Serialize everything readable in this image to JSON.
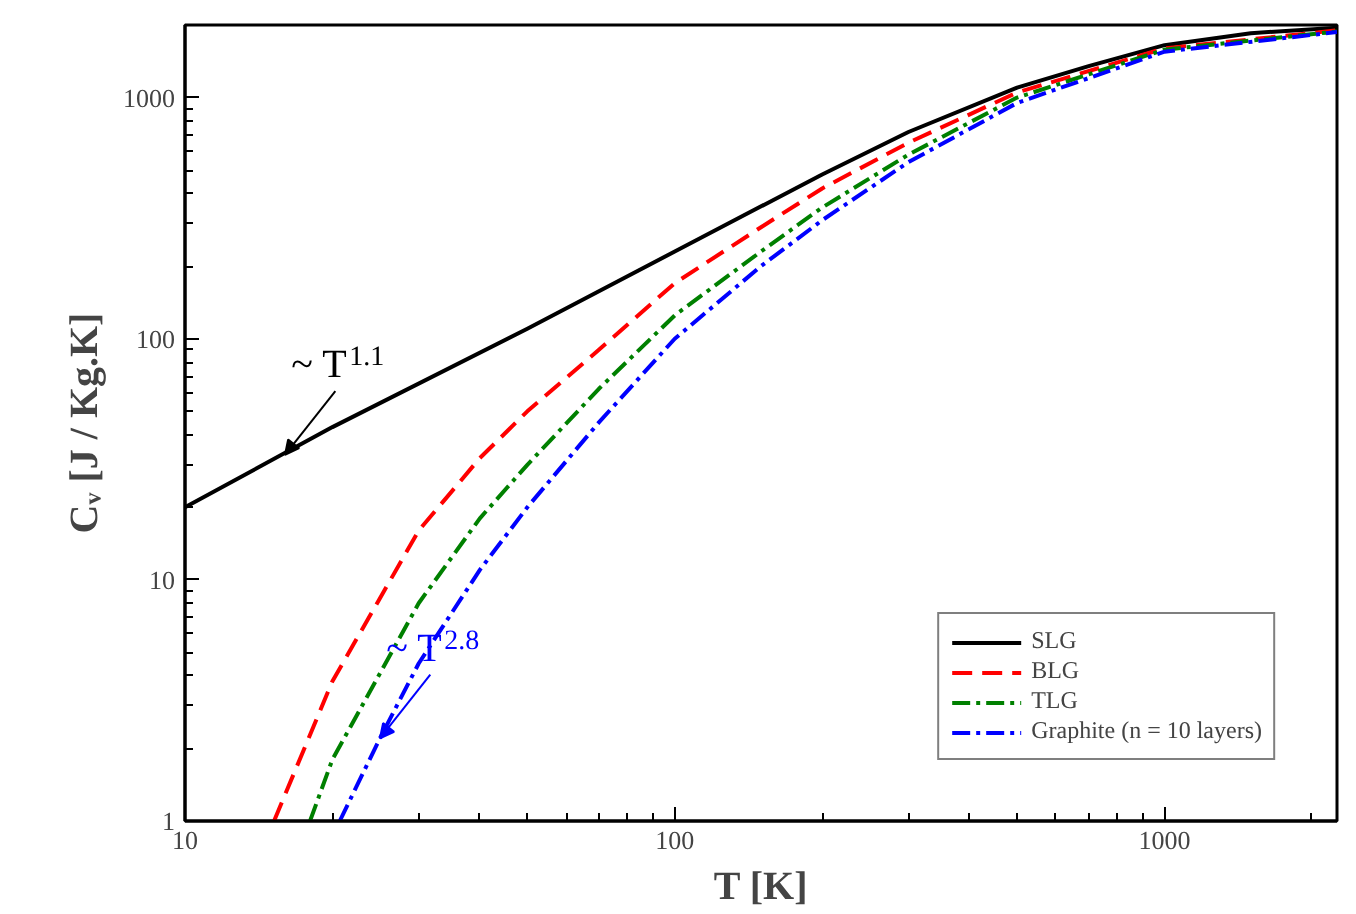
{
  "chart_data": {
    "type": "line",
    "xlabel": "T [K]",
    "ylabel": "Cᵥ [J / Kg.K]",
    "log": "xy",
    "xlim": [
      10,
      2250
    ],
    "ylim": [
      1,
      2000
    ],
    "xticks": [
      10,
      100,
      1000
    ],
    "yticks": [
      1,
      10,
      100,
      1000
    ],
    "grid": false,
    "legend": "bottom right",
    "marker": "none",
    "series": [
      {
        "name": "SLG",
        "color": "#000000",
        "line_style": "solid",
        "x": [
          10,
          20,
          50,
          100,
          200,
          300,
          500,
          700,
          1000,
          1500,
          2250
        ],
        "values": [
          20,
          43,
          110,
          230,
          480,
          720,
          1100,
          1350,
          1650,
          1850,
          1950
        ]
      },
      {
        "name": "BLG",
        "color": "#ff0000",
        "line_style": "dashed",
        "x": [
          15.2,
          20,
          30,
          40,
          50,
          70,
          100,
          150,
          200,
          300,
          500,
          1000,
          2250
        ],
        "values": [
          1,
          3.8,
          16,
          32,
          50,
          90,
          170,
          290,
          420,
          650,
          1050,
          1600,
          1900
        ]
      },
      {
        "name": "TLG",
        "color": "#008000",
        "line_style": "dashdot",
        "x": [
          18,
          20,
          30,
          40,
          50,
          70,
          100,
          150,
          200,
          300,
          500,
          1000,
          2250
        ],
        "values": [
          1,
          1.8,
          8,
          18,
          30,
          62,
          125,
          230,
          350,
          580,
          1000,
          1580,
          1880
        ]
      },
      {
        "name": "Graphite (n = 10 layers)",
        "color": "#0000ff",
        "line_style": "dashdot",
        "x": [
          20.7,
          25,
          30,
          40,
          50,
          70,
          100,
          150,
          200,
          300,
          500,
          1000,
          2250
        ],
        "values": [
          1,
          2.2,
          4.5,
          11,
          20,
          45,
          100,
          200,
          310,
          540,
          950,
          1550,
          1870
        ]
      }
    ],
    "annotations": [
      {
        "text": "~ T$^{1.1}$",
        "x": 16,
        "y": 33
      },
      {
        "text": "~ T$^{2.8}$",
        "x": 25,
        "y": 2.2
      }
    ]
  }
}
